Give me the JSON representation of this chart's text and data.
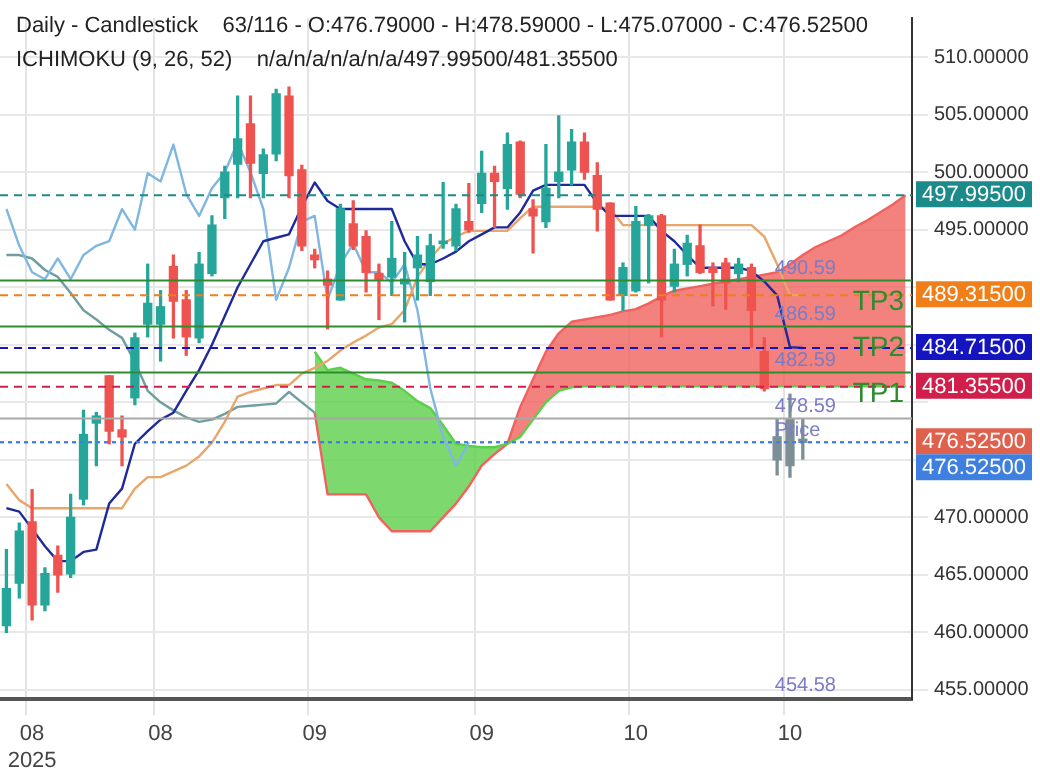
{
  "chart_data": {
    "type": "candlestick",
    "title": "Daily - Candlestick    63/116 - O:476.79000 - H:478.59000 - L:475.07000 - C:476.52500",
    "subtitle": "ICHIMOKU (9, 26, 52)    n/a/n/a/n/a/n/a/497.99500/481.35500",
    "categories": [
      null,
      null,
      "08\n2025",
      null,
      null,
      null,
      null,
      null,
      null,
      null,
      null,
      null,
      "08",
      null,
      null,
      null,
      null,
      null,
      null,
      null,
      null,
      null,
      null,
      null,
      "09",
      null,
      null,
      null,
      null,
      null,
      null,
      null,
      null,
      null,
      null,
      null,
      null,
      "09",
      null,
      null,
      null,
      null,
      null,
      null,
      null,
      null,
      null,
      null,
      null,
      "10",
      null,
      null,
      null,
      null,
      null,
      null,
      null,
      null,
      null,
      null,
      null,
      "10",
      null,
      null,
      null,
      null,
      null,
      null,
      null,
      null,
      null
    ],
    "ohlc": [
      [
        460.6,
        467.2,
        460.0,
        463.8
      ],
      [
        464.3,
        469.5,
        463.0,
        468.8
      ],
      [
        469.6,
        472.4,
        461.1,
        462.4
      ],
      [
        462.4,
        465.6,
        461.9,
        465.1
      ],
      [
        466.7,
        467.5,
        463.5,
        465.0
      ],
      [
        465.1,
        472.0,
        464.8,
        470.0
      ],
      [
        471.6,
        479.3,
        471.1,
        477.2
      ],
      [
        478.2,
        479.1,
        474.5,
        478.8
      ],
      [
        482.3,
        482.3,
        476.4,
        477.5
      ],
      [
        477.6,
        478.8,
        474.5,
        477.0
      ],
      [
        480.4,
        486.0,
        479.8,
        485.6
      ],
      [
        486.8,
        492.0,
        485.7,
        488.6
      ],
      [
        486.8,
        489.7,
        483.6,
        488.3
      ],
      [
        491.8,
        492.8,
        485.6,
        488.8
      ],
      [
        488.9,
        489.7,
        484.1,
        485.7
      ],
      [
        485.6,
        493.0,
        485.2,
        492.0
      ],
      [
        491.2,
        496.2,
        491.0,
        495.4
      ],
      [
        497.8,
        500.5,
        496.0,
        500.0
      ],
      [
        500.7,
        506.6,
        497.8,
        502.9
      ],
      [
        504.2,
        506.6,
        497.8,
        500.8
      ],
      [
        499.9,
        502.0,
        497.8,
        501.5
      ],
      [
        501.6,
        507.2,
        501.0,
        506.8
      ],
      [
        506.6,
        507.4,
        497.8,
        499.7
      ],
      [
        500.2,
        500.6,
        493.2,
        493.6
      ],
      [
        492.8,
        493.3,
        491.7,
        492.4
      ],
      [
        490.7,
        491.4,
        486.4,
        490.2
      ],
      [
        488.9,
        497.2,
        488.9,
        496.8
      ],
      [
        495.5,
        497.5,
        493.3,
        493.6
      ],
      [
        494.4,
        494.9,
        489.6,
        491.3
      ],
      [
        491.2,
        492.0,
        487.2,
        490.7
      ],
      [
        490.9,
        495.7,
        489.3,
        492.5
      ],
      [
        490.3,
        493.0,
        487.0,
        490.7
      ],
      [
        491.7,
        494.4,
        488.9,
        492.8
      ],
      [
        490.5,
        494.6,
        489.3,
        493.6
      ],
      [
        493.8,
        499.1,
        493.4,
        494.0
      ],
      [
        493.6,
        497.2,
        493.2,
        496.8
      ],
      [
        495.7,
        499.0,
        494.8,
        495.0
      ],
      [
        497.3,
        501.8,
        496.5,
        499.9
      ],
      [
        499.9,
        500.5,
        495.2,
        499.2
      ],
      [
        498.6,
        503.4,
        496.8,
        502.4
      ],
      [
        502.6,
        502.7,
        497.8,
        498.1
      ],
      [
        496.8,
        497.6,
        493.0,
        496.2
      ],
      [
        495.7,
        502.4,
        495.2,
        498.6
      ],
      [
        499.2,
        504.9,
        497.8,
        500.0
      ],
      [
        500.2,
        503.7,
        498.9,
        502.6
      ],
      [
        502.6,
        503.4,
        499.4,
        500.0
      ],
      [
        499.7,
        500.8,
        494.9,
        496.8
      ],
      [
        497.3,
        497.3,
        488.9,
        488.9
      ],
      [
        489.3,
        492.1,
        488.0,
        491.7
      ],
      [
        489.7,
        497.0,
        489.6,
        495.7
      ],
      [
        495.4,
        496.3,
        490.4,
        496.2
      ],
      [
        496.2,
        496.3,
        485.7,
        488.9
      ],
      [
        490.1,
        493.3,
        489.6,
        492.0
      ],
      [
        492.0,
        494.5,
        491.0,
        493.8
      ],
      [
        493.6,
        495.4,
        491.2,
        491.3
      ],
      [
        491.7,
        492.1,
        488.4,
        491.3
      ],
      [
        492.1,
        492.5,
        488.1,
        490.4
      ],
      [
        491.2,
        492.5,
        490.5,
        492.0
      ],
      [
        491.7,
        492.0,
        484.8,
        488.0
      ],
      [
        484.4,
        485.6,
        481.0,
        481.2
      ],
      [
        475.0,
        478.5,
        473.7,
        477.0
      ],
      [
        478.5,
        480.7,
        473.5,
        474.5
      ],
      [
        476.79,
        478.59,
        475.07,
        476.525
      ],
      null,
      null,
      null,
      null,
      null,
      null,
      null,
      null
    ],
    "colors": [
      "#26a69a",
      "#26a69a",
      "#ef5350",
      "#26a69a",
      "#ef5350",
      "#26a69a",
      "#26a69a",
      "#26a69a",
      "#ef5350",
      "#ef5350",
      "#26a69a",
      "#26a69a",
      "#26a69a",
      "#ef5350",
      "#ef5350",
      "#26a69a",
      "#26a69a",
      "#26a69a",
      "#26a69a",
      "#ef5350",
      "#26a69a",
      "#26a69a",
      "#ef5350",
      "#ef5350",
      "#ef5350",
      "#ef5350",
      "#26a69a",
      "#ef5350",
      "#ef5350",
      "#ef5350",
      "#26a69a",
      "#26a69a",
      "#26a69a",
      "#26a69a",
      "#26a69a",
      "#26a69a",
      "#ef5350",
      "#26a69a",
      "#ef5350",
      "#26a69a",
      "#ef5350",
      "#ef5350",
      "#26a69a",
      "#26a69a",
      "#26a69a",
      "#ef5350",
      "#ef5350",
      "#ef5350",
      "#26a69a",
      "#26a69a",
      "#26a69a",
      "#ef5350",
      "#26a69a",
      "#26a69a",
      "#ef5350",
      "#ef5350",
      "#ef5350",
      "#26a69a",
      "#ef5350",
      "#ef5350",
      "#7d8f96",
      "#7d8f96",
      "#7d8f96",
      null,
      null,
      null,
      null,
      null,
      null,
      null,
      null
    ],
    "series": [
      {
        "type": "line",
        "color": "#1f2a9a",
        "values": [
          470.8,
          470.5,
          469,
          467.5,
          466.2,
          466.2,
          467,
          467.2,
          471.2,
          472.5,
          476.4,
          477.5,
          478.5,
          479.1,
          481,
          482.8,
          485,
          487.5,
          490,
          492,
          494,
          494.3,
          494.6,
          497,
          499.1,
          497.5,
          496.8,
          496.8,
          496.8,
          496.8,
          496.8,
          494,
          492,
          492,
          492.5,
          493.1,
          494,
          494.6,
          495.2,
          495.2,
          496.5,
          498.4,
          498.9,
          498.9,
          498.9,
          498.9,
          497.3,
          496.2,
          496.2,
          496.2,
          496.2,
          494.9,
          494,
          492.8,
          491.7,
          491.7,
          491.7,
          491.7,
          491.4,
          490.5,
          489.3,
          484.8,
          484.715,
          null,
          null,
          null,
          null,
          null,
          null,
          null,
          null
        ]
      },
      {
        "type": "line",
        "color": "#e8a66a",
        "values": [
          472.9,
          471.5,
          470.8,
          470.8,
          470.8,
          470.8,
          470.8,
          470.8,
          470.8,
          470.8,
          472.5,
          473.5,
          473.5,
          474,
          474.5,
          475.3,
          476.5,
          478.3,
          480.5,
          480.9,
          481.2,
          481.5,
          481.5,
          482.5,
          483,
          483.6,
          484.5,
          485.2,
          485.8,
          486.5,
          486.8,
          488,
          490.9,
          492.5,
          493.8,
          494.4,
          494.9,
          494.9,
          494.9,
          494.9,
          496,
          497,
          497,
          497,
          497,
          497,
          497,
          496.8,
          495.4,
          495.4,
          495.4,
          495.4,
          495.4,
          495.4,
          495.4,
          495.4,
          495.4,
          495.4,
          495.4,
          494.4,
          492,
          489.315,
          489.315,
          null,
          null,
          null,
          null,
          null,
          null,
          null,
          null
        ]
      },
      {
        "type": "line",
        "color": "#7fb7e0",
        "values": [
          496.8,
          493.6,
          491.3,
          490.7,
          492.5,
          490.7,
          492.8,
          493.6,
          494.0,
          496.8,
          495.0,
          499.9,
          499.2,
          502.4,
          498.1,
          496.2,
          498.6,
          500.0,
          502.6,
          500.0,
          496.8,
          488.9,
          491.7,
          495.7,
          496.2,
          488.9,
          492.0,
          493.8,
          491.3,
          491.3,
          490.4,
          492.0,
          488.0,
          481.2,
          477.0,
          474.5,
          476.525,
          null,
          null,
          null,
          null,
          null,
          null,
          null,
          null,
          null,
          null,
          null,
          null,
          null,
          null,
          null,
          null,
          null,
          null,
          null,
          null,
          null,
          null,
          null,
          null,
          null,
          null,
          null,
          null,
          null,
          null,
          null,
          null,
          null,
          null
        ]
      },
      {
        "type": "line",
        "color": "#6f9ea0",
        "values": [
          492.8,
          492.8,
          492.5,
          491.5,
          490.9,
          489.5,
          488,
          487.2,
          486.3,
          485.6,
          483.5,
          481,
          480,
          479.3,
          478.7,
          478.3,
          478.5,
          479,
          479.6,
          479.7,
          479.8,
          479.9,
          480.9,
          480,
          479.1,
          null,
          null,
          null,
          null,
          null,
          null,
          null,
          null,
          null,
          null,
          null,
          null,
          null,
          null,
          null,
          null,
          null,
          null,
          null,
          null,
          null,
          null,
          null,
          null,
          null,
          null,
          null,
          null,
          null,
          null,
          null,
          null,
          null,
          null,
          null,
          null,
          null,
          null,
          null,
          null,
          null,
          null,
          null,
          null,
          null,
          null
        ]
      },
      {
        "type": "line",
        "color": "#5ccf4a",
        "values": [
          null,
          null,
          null,
          null,
          null,
          null,
          null,
          null,
          null,
          null,
          null,
          null,
          null,
          null,
          null,
          null,
          null,
          null,
          null,
          null,
          null,
          null,
          null,
          null,
          484.4,
          482.8,
          483,
          482.5,
          482,
          481.9,
          481.7,
          481,
          480.1,
          479.5,
          478,
          476.4,
          476.2,
          476.1,
          476.1,
          476.4,
          477,
          478.5,
          480,
          481,
          481.3,
          481.4,
          481.4,
          481.4,
          481.4,
          481.4,
          481.4,
          481.4,
          481.4,
          481.4,
          481.4,
          481.4,
          481.4,
          481.4,
          481.4,
          481.4,
          481.4,
          481.4,
          481.4,
          481.4,
          481.4,
          481.4,
          481.4,
          481.4,
          481.4,
          481.4,
          481.355
        ],
        "lower": [
          null,
          null,
          null,
          null,
          null,
          null,
          null,
          null,
          null,
          null,
          null,
          null,
          null,
          null,
          null,
          null,
          null,
          null,
          null,
          null,
          null,
          null,
          null,
          null,
          479.1,
          472,
          472,
          472,
          472,
          470,
          468.8,
          468.8,
          468.8,
          468.8,
          470,
          471.2,
          472.7,
          474.5,
          475.5,
          476.4,
          null,
          null,
          null,
          null,
          null,
          null,
          null,
          null,
          null,
          null,
          null,
          null,
          null,
          null,
          null,
          null,
          null,
          null,
          null,
          null,
          null,
          null,
          null,
          null,
          null,
          null,
          null,
          null,
          null,
          null,
          null
        ],
        "upper": [
          null,
          null,
          null,
          null,
          null,
          null,
          null,
          null,
          null,
          null,
          null,
          null,
          null,
          null,
          null,
          null,
          null,
          null,
          null,
          null,
          null,
          null,
          null,
          null,
          484.4,
          482.8,
          483,
          482.5,
          482,
          481.9,
          481.7,
          481,
          480.1,
          479.5,
          478,
          476.4,
          476.2,
          476.1,
          476.1,
          476.4,
          null,
          null,
          null,
          null,
          null,
          null,
          null,
          null,
          null,
          null,
          null,
          null,
          null,
          null,
          null,
          null,
          null,
          null,
          null,
          null,
          null,
          null,
          null,
          null,
          null,
          null,
          null,
          null,
          null,
          null,
          null
        ]
      },
      {
        "type": "line",
        "color": "#f0625e",
        "values": [
          null,
          null,
          null,
          null,
          null,
          null,
          null,
          null,
          null,
          null,
          null,
          null,
          null,
          null,
          null,
          null,
          null,
          null,
          null,
          null,
          null,
          null,
          null,
          null,
          479.1,
          472,
          472,
          472,
          472,
          470,
          468.8,
          468.8,
          468.8,
          468.8,
          470,
          471.2,
          472.7,
          474.5,
          475.5,
          476.4,
          479.6,
          482,
          484.4,
          486,
          487,
          487.2,
          487.4,
          487.6,
          487.9,
          488.1,
          488.6,
          489.2,
          489.7,
          489.9,
          490.1,
          490.3,
          490.5,
          490.7,
          490.9,
          491.1,
          491.3,
          492,
          492.8,
          493.5,
          494,
          494.5,
          495.2,
          495.8,
          496.5,
          497.2,
          497.995
        ],
        "lower": [
          null,
          null,
          null,
          null,
          null,
          null,
          null,
          null,
          null,
          null,
          null,
          null,
          null,
          null,
          null,
          null,
          null,
          null,
          null,
          null,
          null,
          null,
          null,
          null,
          null,
          null,
          null,
          null,
          null,
          null,
          null,
          null,
          null,
          null,
          null,
          null,
          null,
          null,
          null,
          476.4,
          477,
          478.5,
          480,
          481,
          481.3,
          481.4,
          481.4,
          481.4,
          481.4,
          481.4,
          481.4,
          481.4,
          481.4,
          481.4,
          481.4,
          481.4,
          481.4,
          481.4,
          481.4,
          481.4,
          481.4,
          481.4,
          481.4,
          481.4,
          481.4,
          481.4,
          481.4,
          481.4,
          481.4,
          481.4,
          481.355
        ],
        "upper": [
          null,
          null,
          null,
          null,
          null,
          null,
          null,
          null,
          null,
          null,
          null,
          null,
          null,
          null,
          null,
          null,
          null,
          null,
          null,
          null,
          null,
          null,
          null,
          null,
          null,
          null,
          null,
          null,
          null,
          null,
          null,
          null,
          null,
          null,
          null,
          null,
          null,
          null,
          null,
          476.4,
          479.6,
          482,
          484.4,
          486,
          487,
          487.2,
          487.4,
          487.6,
          487.9,
          488.1,
          488.6,
          489.2,
          489.7,
          489.9,
          490.1,
          490.3,
          490.5,
          490.7,
          490.9,
          491.1,
          491.3,
          492,
          492.8,
          493.5,
          494,
          494.5,
          495.2,
          495.8,
          496.5,
          497.2,
          497.995
        ]
      }
    ],
    "ref_lines": [
      {
        "axis": "y",
        "value": 497.995,
        "label": "497.99500",
        "color": "#1b8a8a",
        "line_style": "dashed"
      },
      {
        "axis": "y",
        "value": 489.315,
        "label": "489.31500",
        "color": "#f07f1a",
        "line_style": "dashed"
      },
      {
        "axis": "y",
        "value": 484.715,
        "label": "484.71500",
        "color": "#1515c0",
        "line_style": "dashed"
      },
      {
        "axis": "y",
        "value": 481.355,
        "label": "481.35500",
        "color": "#d01f4a",
        "line_style": "dashed"
      },
      {
        "axis": "y",
        "value": 476.525,
        "label": "476.52500",
        "color": "#e0604e",
        "line_style": "dotted"
      },
      {
        "axis": "y",
        "value": 476.525,
        "label": "476.52500",
        "color": "#3f7fe0",
        "line_style": "dotted"
      },
      {
        "axis": "y",
        "value": 490.59,
        "label": "TP3",
        "color": "#2e8b2e",
        "line_style": "solid"
      },
      {
        "axis": "y",
        "value": 486.59,
        "label": "TP2",
        "color": "#2e8b2e",
        "line_style": "solid"
      },
      {
        "axis": "y",
        "value": 482.59,
        "label": "TP1",
        "color": "#2e8b2e",
        "line_style": "solid"
      },
      {
        "axis": "y",
        "value": 478.59,
        "color": "#a8a8a8",
        "line_style": "solid"
      }
    ],
    "annotations": [
      {
        "text": "490.59",
        "y": 490.59
      },
      {
        "text": "486.59",
        "y": 486.59
      },
      {
        "text": "482.59",
        "y": 482.59
      },
      {
        "text": "478.59",
        "y": 478.59
      },
      {
        "text": "Price",
        "y": 476.525
      },
      "454.58"
    ],
    "ylim": [
      454.2,
      513.4
    ],
    "yticks": [
      {
        "value": 455,
        "label": "455.00000"
      },
      {
        "value": 460,
        "label": "460.00000"
      },
      {
        "value": 465,
        "label": "465.00000"
      },
      {
        "value": 470,
        "label": "470.00000"
      },
      {
        "value": 475,
        "label": null
      },
      {
        "value": 480,
        "label": null
      },
      {
        "value": 485,
        "label": null
      },
      {
        "value": 490,
        "label": null
      },
      {
        "value": 495,
        "label": "495.00000"
      },
      {
        "value": 500,
        "label": "500.00000"
      },
      {
        "value": 505,
        "label": "505.00000"
      },
      {
        "value": 510,
        "label": "510.00000"
      }
    ],
    "grid": true
  }
}
